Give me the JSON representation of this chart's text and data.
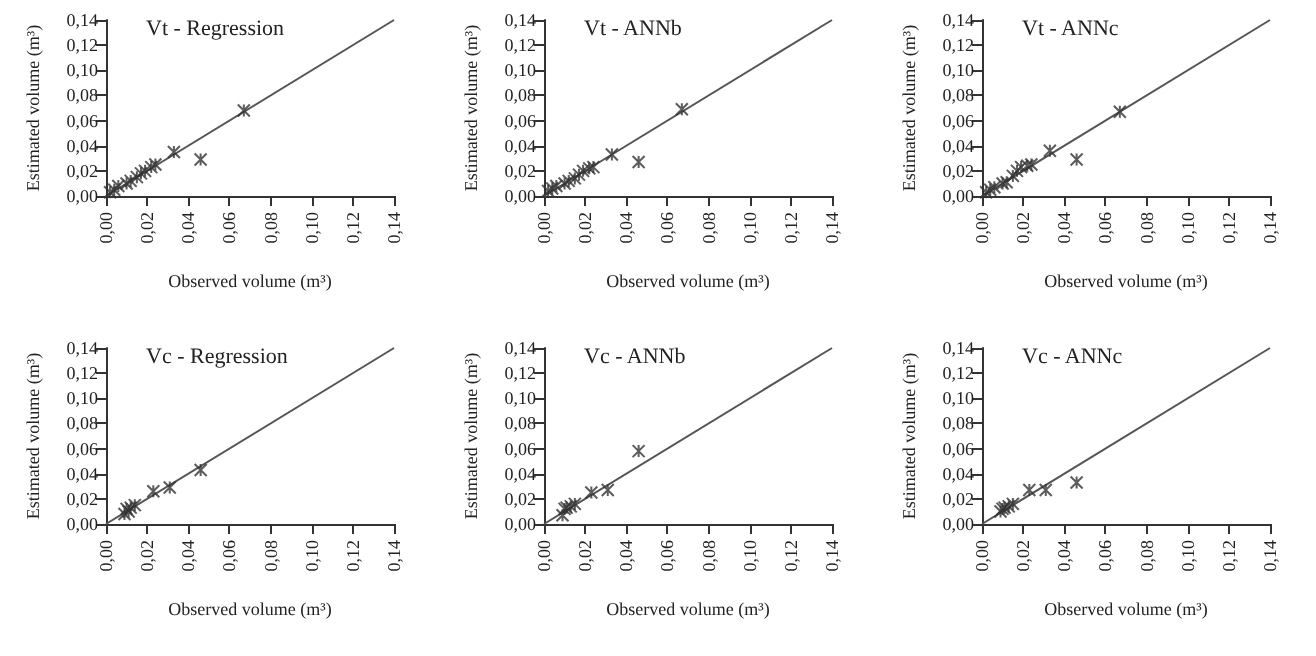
{
  "chart_data": [
    {
      "type": "scatter",
      "title": "Vt - Regression",
      "xlabel": "Observed volume (m³)",
      "ylabel": "Estimated volume (m³)",
      "xlim": [
        0,
        0.14
      ],
      "ylim": [
        0,
        0.14
      ],
      "xticks": [
        {
          "value": 0,
          "label": "0,00"
        },
        {
          "value": 0.02,
          "label": "0,02"
        },
        {
          "value": 0.04,
          "label": "0,04"
        },
        {
          "value": 0.06,
          "label": "0,06"
        },
        {
          "value": 0.08,
          "label": "0,08"
        },
        {
          "value": 0.1,
          "label": "0,10"
        },
        {
          "value": 0.12,
          "label": "0,12"
        },
        {
          "value": 0.14,
          "label": "0,14"
        }
      ],
      "yticks": [
        {
          "value": 0,
          "label": "0,00"
        },
        {
          "value": 0.02,
          "label": "0,02"
        },
        {
          "value": 0.04,
          "label": "0,04"
        },
        {
          "value": 0.06,
          "label": "0,06"
        },
        {
          "value": 0.08,
          "label": "0,08"
        },
        {
          "value": 0.1,
          "label": "0,10"
        },
        {
          "value": 0.12,
          "label": "0,12"
        },
        {
          "value": 0.14,
          "label": "0,14"
        }
      ],
      "grid": false,
      "marker": "cross",
      "series": [
        {
          "color": "#333333",
          "x": [
            0.002,
            0.004,
            0.006,
            0.01,
            0.012,
            0.015,
            0.017,
            0.019,
            0.022,
            0.024,
            0.033,
            0.046,
            0.067
          ],
          "values": [
            0.003,
            0.005,
            0.008,
            0.01,
            0.012,
            0.015,
            0.018,
            0.02,
            0.023,
            0.025,
            0.035,
            0.029,
            0.068
          ]
        },
        {
          "type": "line",
          "marker": "none",
          "color": "#555555",
          "x": [
            0,
            0.14
          ],
          "values": [
            0,
            0.14
          ]
        }
      ]
    },
    {
      "type": "scatter",
      "title": "Vt - ANNb",
      "xlabel": "Observed volume (m³)",
      "ylabel": "Estimated volume (m³)",
      "xlim": [
        0,
        0.14
      ],
      "ylim": [
        0,
        0.14
      ],
      "xticks": [
        {
          "value": 0,
          "label": "0,00"
        },
        {
          "value": 0.02,
          "label": "0,02"
        },
        {
          "value": 0.04,
          "label": "0,04"
        },
        {
          "value": 0.06,
          "label": "0,06"
        },
        {
          "value": 0.08,
          "label": "0,08"
        },
        {
          "value": 0.1,
          "label": "0,10"
        },
        {
          "value": 0.12,
          "label": "0,12"
        },
        {
          "value": 0.14,
          "label": "0,14"
        }
      ],
      "yticks": [
        {
          "value": 0,
          "label": "0,00"
        },
        {
          "value": 0.02,
          "label": "0,02"
        },
        {
          "value": 0.04,
          "label": "0,04"
        },
        {
          "value": 0.06,
          "label": "0,06"
        },
        {
          "value": 0.08,
          "label": "0,08"
        },
        {
          "value": 0.1,
          "label": "0,10"
        },
        {
          "value": 0.12,
          "label": "0,12"
        },
        {
          "value": 0.14,
          "label": "0,14"
        }
      ],
      "grid": false,
      "marker": "cross",
      "series": [
        {
          "color": "#333333",
          "x": [
            0.002,
            0.004,
            0.006,
            0.01,
            0.012,
            0.015,
            0.017,
            0.019,
            0.022,
            0.024,
            0.033,
            0.046,
            0.067
          ],
          "values": [
            0.004,
            0.006,
            0.008,
            0.01,
            0.012,
            0.014,
            0.017,
            0.02,
            0.022,
            0.023,
            0.033,
            0.027,
            0.069
          ]
        },
        {
          "type": "line",
          "marker": "none",
          "color": "#555555",
          "x": [
            0,
            0.14
          ],
          "values": [
            0,
            0.14
          ]
        }
      ]
    },
    {
      "type": "scatter",
      "title": "Vt - ANNc",
      "xlabel": "Observed volume (m³)",
      "ylabel": "Estimated volume (m³)",
      "xlim": [
        0,
        0.14
      ],
      "ylim": [
        0,
        0.14
      ],
      "xticks": [
        {
          "value": 0,
          "label": "0,00"
        },
        {
          "value": 0.02,
          "label": "0,02"
        },
        {
          "value": 0.04,
          "label": "0,04"
        },
        {
          "value": 0.06,
          "label": "0,06"
        },
        {
          "value": 0.08,
          "label": "0,08"
        },
        {
          "value": 0.1,
          "label": "0,10"
        },
        {
          "value": 0.12,
          "label": "0,12"
        },
        {
          "value": 0.14,
          "label": "0,14"
        }
      ],
      "yticks": [
        {
          "value": 0,
          "label": "0,00"
        },
        {
          "value": 0.02,
          "label": "0,02"
        },
        {
          "value": 0.04,
          "label": "0,04"
        },
        {
          "value": 0.06,
          "label": "0,06"
        },
        {
          "value": 0.08,
          "label": "0,08"
        },
        {
          "value": 0.1,
          "label": "0,10"
        },
        {
          "value": 0.12,
          "label": "0,12"
        },
        {
          "value": 0.14,
          "label": "0,14"
        }
      ],
      "grid": false,
      "marker": "cross",
      "series": [
        {
          "color": "#333333",
          "x": [
            0.002,
            0.004,
            0.006,
            0.01,
            0.012,
            0.015,
            0.017,
            0.019,
            0.022,
            0.024,
            0.033,
            0.046,
            0.067
          ],
          "values": [
            0.003,
            0.005,
            0.007,
            0.01,
            0.011,
            0.016,
            0.02,
            0.023,
            0.024,
            0.025,
            0.036,
            0.029,
            0.067
          ]
        },
        {
          "type": "line",
          "marker": "none",
          "color": "#555555",
          "x": [
            0,
            0.14
          ],
          "values": [
            0,
            0.14
          ]
        }
      ]
    },
    {
      "type": "scatter",
      "title": "Vc - Regression",
      "xlabel": "Observed volume (m³)",
      "ylabel": "Estimated volume (m³)",
      "xlim": [
        0,
        0.14
      ],
      "ylim": [
        0,
        0.14
      ],
      "xticks": [
        {
          "value": 0,
          "label": "0,00"
        },
        {
          "value": 0.02,
          "label": "0,02"
        },
        {
          "value": 0.04,
          "label": "0,04"
        },
        {
          "value": 0.06,
          "label": "0,06"
        },
        {
          "value": 0.08,
          "label": "0,08"
        },
        {
          "value": 0.1,
          "label": "0,10"
        },
        {
          "value": 0.12,
          "label": "0,12"
        },
        {
          "value": 0.14,
          "label": "0,14"
        }
      ],
      "yticks": [
        {
          "value": 0,
          "label": "0,00"
        },
        {
          "value": 0.02,
          "label": "0,02"
        },
        {
          "value": 0.04,
          "label": "0,04"
        },
        {
          "value": 0.06,
          "label": "0,06"
        },
        {
          "value": 0.08,
          "label": "0,08"
        },
        {
          "value": 0.1,
          "label": "0,10"
        },
        {
          "value": 0.12,
          "label": "0,12"
        },
        {
          "value": 0.14,
          "label": "0,14"
        }
      ],
      "grid": false,
      "marker": "cross",
      "series": [
        {
          "color": "#333333",
          "x": [
            0.009,
            0.01,
            0.011,
            0.012,
            0.014,
            0.023,
            0.031,
            0.046
          ],
          "values": [
            0.008,
            0.012,
            0.01,
            0.013,
            0.015,
            0.026,
            0.029,
            0.043
          ]
        },
        {
          "type": "line",
          "marker": "none",
          "color": "#555555",
          "x": [
            0,
            0.14
          ],
          "values": [
            0,
            0.14
          ]
        }
      ]
    },
    {
      "type": "scatter",
      "title": "Vc - ANNb",
      "xlabel": "Observed volume (m³)",
      "ylabel": "Estimated volume (m³)",
      "xlim": [
        0,
        0.14
      ],
      "ylim": [
        0,
        0.14
      ],
      "xticks": [
        {
          "value": 0,
          "label": "0,00"
        },
        {
          "value": 0.02,
          "label": "0,02"
        },
        {
          "value": 0.04,
          "label": "0,04"
        },
        {
          "value": 0.06,
          "label": "0,06"
        },
        {
          "value": 0.08,
          "label": "0,08"
        },
        {
          "value": 0.1,
          "label": "0,10"
        },
        {
          "value": 0.12,
          "label": "0,12"
        },
        {
          "value": 0.14,
          "label": "0,14"
        }
      ],
      "yticks": [
        {
          "value": 0,
          "label": "0,00"
        },
        {
          "value": 0.02,
          "label": "0,02"
        },
        {
          "value": 0.04,
          "label": "0,04"
        },
        {
          "value": 0.06,
          "label": "0,06"
        },
        {
          "value": 0.08,
          "label": "0,08"
        },
        {
          "value": 0.1,
          "label": "0,10"
        },
        {
          "value": 0.12,
          "label": "0,12"
        },
        {
          "value": 0.14,
          "label": "0,14"
        }
      ],
      "grid": false,
      "marker": "cross",
      "series": [
        {
          "color": "#333333",
          "x": [
            0.009,
            0.01,
            0.011,
            0.013,
            0.015,
            0.023,
            0.031,
            0.046
          ],
          "values": [
            0.007,
            0.012,
            0.013,
            0.014,
            0.016,
            0.025,
            0.027,
            0.058
          ]
        },
        {
          "type": "line",
          "marker": "none",
          "color": "#555555",
          "x": [
            0,
            0.14
          ],
          "values": [
            0,
            0.14
          ]
        }
      ]
    },
    {
      "type": "scatter",
      "title": "Vc - ANNc",
      "xlabel": "Observed volume (m³)",
      "ylabel": "Estimated volume (m³)",
      "xlim": [
        0,
        0.14
      ],
      "ylim": [
        0,
        0.14
      ],
      "xticks": [
        {
          "value": 0,
          "label": "0,00"
        },
        {
          "value": 0.02,
          "label": "0,02"
        },
        {
          "value": 0.04,
          "label": "0,04"
        },
        {
          "value": 0.06,
          "label": "0,06"
        },
        {
          "value": 0.08,
          "label": "0,08"
        },
        {
          "value": 0.1,
          "label": "0,10"
        },
        {
          "value": 0.12,
          "label": "0,12"
        },
        {
          "value": 0.14,
          "label": "0,14"
        }
      ],
      "yticks": [
        {
          "value": 0,
          "label": "0,00"
        },
        {
          "value": 0.02,
          "label": "0,02"
        },
        {
          "value": 0.04,
          "label": "0,04"
        },
        {
          "value": 0.06,
          "label": "0,06"
        },
        {
          "value": 0.08,
          "label": "0,08"
        },
        {
          "value": 0.1,
          "label": "0,10"
        },
        {
          "value": 0.12,
          "label": "0,12"
        },
        {
          "value": 0.14,
          "label": "0,14"
        }
      ],
      "grid": false,
      "marker": "cross",
      "series": [
        {
          "color": "#333333",
          "x": [
            0.009,
            0.01,
            0.011,
            0.013,
            0.015,
            0.023,
            0.031,
            0.046
          ],
          "values": [
            0.01,
            0.012,
            0.013,
            0.014,
            0.016,
            0.027,
            0.027,
            0.033
          ]
        },
        {
          "type": "line",
          "marker": "none",
          "color": "#555555",
          "x": [
            0,
            0.14
          ],
          "values": [
            0,
            0.14
          ]
        }
      ]
    }
  ]
}
